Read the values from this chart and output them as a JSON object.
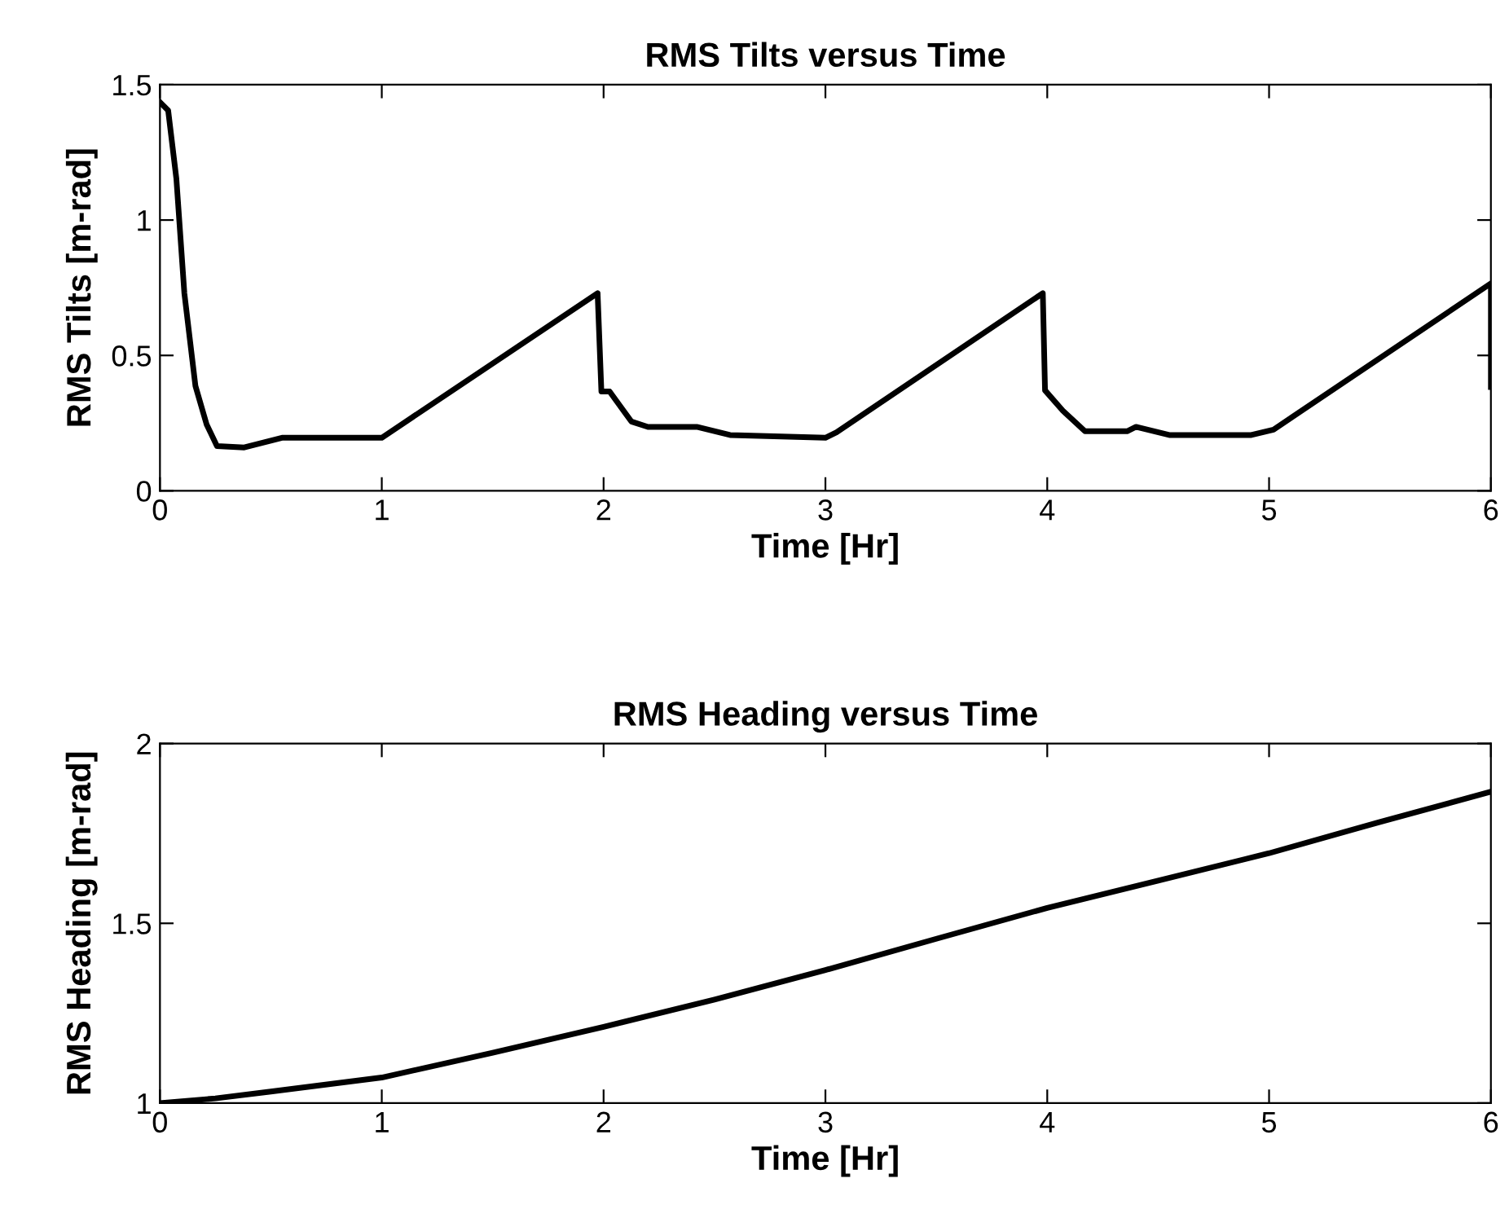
{
  "chart_data": [
    {
      "type": "line",
      "title": "RMS Tilts versus Time",
      "xlabel": "Time [Hr]",
      "ylabel": "RMS Tilts [m-rad]",
      "xlim": [
        0,
        6
      ],
      "xticks": [
        0,
        1,
        2,
        3,
        4,
        5,
        6
      ],
      "ylim": [
        0,
        1.5
      ],
      "yticks": [
        0,
        0.5,
        1,
        1.5
      ],
      "grid": false,
      "legend": false,
      "series": [
        {
          "color": "#000000",
          "x": [
            0,
            0.037,
            0.074,
            0.11,
            0.16,
            0.21,
            0.257,
            0.38,
            0.55,
            1.0,
            1.973,
            1.99,
            2.027,
            2.125,
            2.2,
            2.42,
            2.57,
            3.0,
            3.05,
            3.98,
            3.99,
            4.07,
            4.17,
            4.36,
            4.4,
            4.55,
            4.92,
            5.02,
            6.0,
            6.0
          ],
          "values": [
            1.435,
            1.405,
            1.153,
            0.73,
            0.387,
            0.246,
            0.165,
            0.16,
            0.196,
            0.196,
            0.73,
            0.367,
            0.367,
            0.256,
            0.236,
            0.236,
            0.206,
            0.196,
            0.216,
            0.73,
            0.371,
            0.296,
            0.22,
            0.22,
            0.236,
            0.206,
            0.206,
            0.226,
            0.766,
            0.383
          ]
        }
      ]
    },
    {
      "type": "line",
      "title": "RMS Heading versus Time",
      "xlabel": "Time [Hr]",
      "ylabel": "RMS Heading [m-rad]",
      "xlim": [
        0,
        6
      ],
      "xticks": [
        0,
        1,
        2,
        3,
        4,
        5,
        6
      ],
      "ylim": [
        1,
        2
      ],
      "yticks": [
        1,
        1.5,
        2
      ],
      "grid": false,
      "legend": false,
      "series": [
        {
          "color": "#000000",
          "x": [
            0,
            0.25,
            0.5,
            1,
            1.5,
            2,
            2.5,
            3,
            3.5,
            4,
            4.5,
            5,
            5.5,
            6
          ],
          "values": [
            1.0,
            1.013,
            1.032,
            1.071,
            1.14,
            1.212,
            1.288,
            1.37,
            1.457,
            1.543,
            1.619,
            1.695,
            1.782,
            1.866
          ]
        }
      ]
    }
  ]
}
